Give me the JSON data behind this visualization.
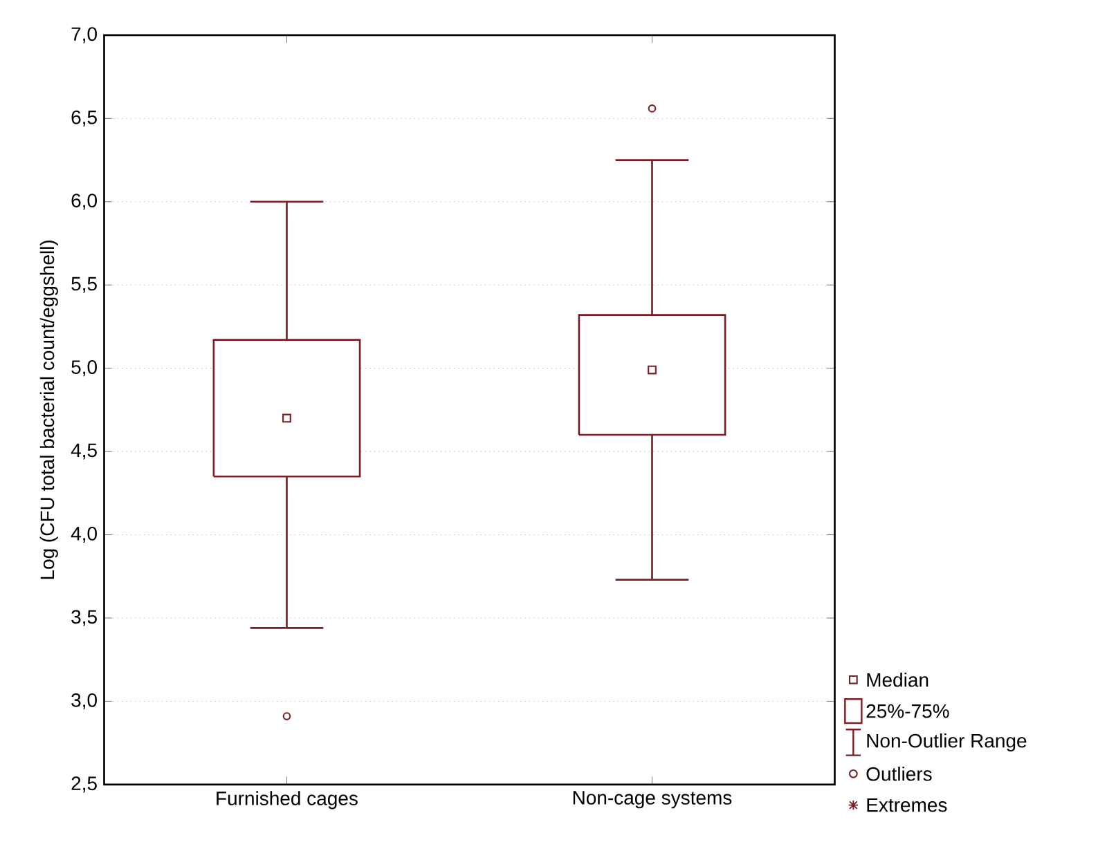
{
  "chart_data": {
    "type": "box",
    "ylabel": "Log (CFU total bacterial count/eggshell)",
    "categories": [
      "Furnished cages",
      "Non-cage systems"
    ],
    "color": "#7b1f24",
    "boxes": [
      {
        "low": 3.44,
        "q1": 4.35,
        "median": 4.7,
        "q3": 5.17,
        "high": 6.0,
        "outliers": [
          2.91
        ]
      },
      {
        "low": 3.73,
        "q1": 4.6,
        "median": 4.99,
        "q3": 5.32,
        "high": 6.25,
        "outliers": [
          6.56
        ]
      }
    ],
    "ylim": [
      2.5,
      7.0
    ],
    "yticks": [
      {
        "value": 2.5,
        "label": "2,5"
      },
      {
        "value": 3.0,
        "label": "3,0"
      },
      {
        "value": 3.5,
        "label": "3,5"
      },
      {
        "value": 4.0,
        "label": "4,0"
      },
      {
        "value": 4.5,
        "label": "4,5"
      },
      {
        "value": 5.0,
        "label": "5,0"
      },
      {
        "value": 5.5,
        "label": "5,5"
      },
      {
        "value": 6.0,
        "label": "6,0"
      },
      {
        "value": 6.5,
        "label": "6,5"
      },
      {
        "value": 7.0,
        "label": "7,0"
      }
    ],
    "grid": "y",
    "annotations": [
      "Median",
      "25%-75%",
      "Non-Outlier Range",
      "Outliers",
      "Extremes"
    ]
  }
}
